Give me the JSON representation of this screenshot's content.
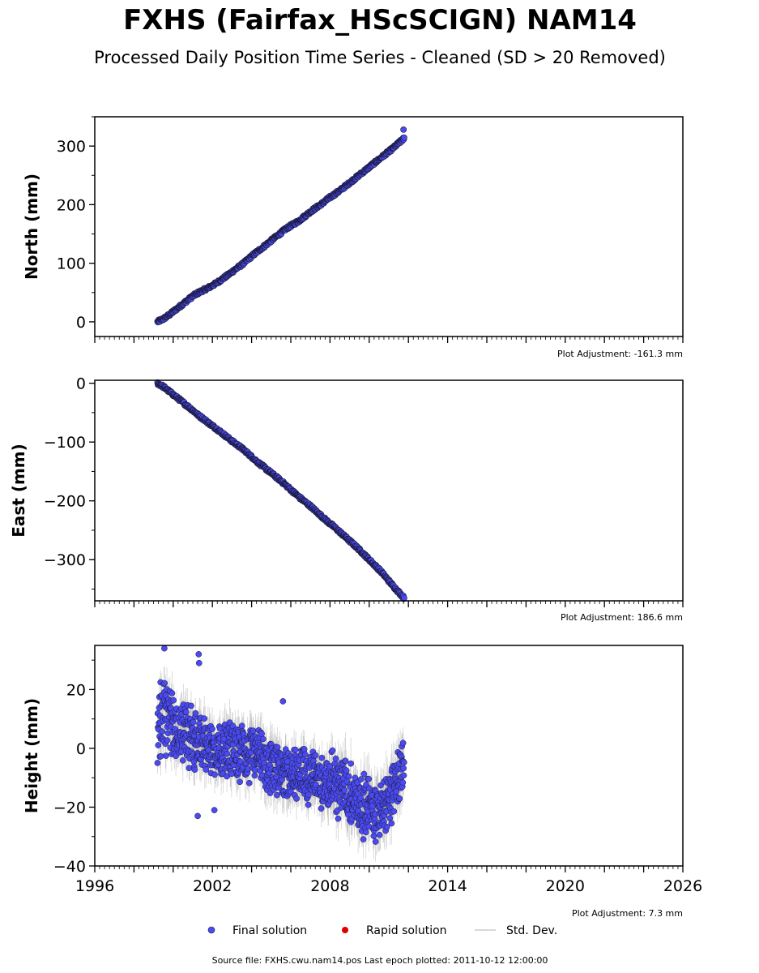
{
  "title": "FXHS (Fairfax_HScSCIGN) NAM14",
  "subtitle": "Processed Daily Position Time Series - Cleaned (SD > 20 Removed)",
  "legend": {
    "final": "Final solution",
    "rapid": "Rapid solution",
    "std": "Std. Dev."
  },
  "source": "Source file: FXHS.cwu.nam14.pos  Last epoch plotted: 2011-10-12 12:00:00",
  "colors": {
    "final": "#4a4af0",
    "final_edge": "#1a1a3a",
    "rapid": "#dd0000",
    "std": "#b0b0b0"
  },
  "chart_data": [
    {
      "type": "scatter",
      "panel": "north",
      "ylabel": "North (mm)",
      "adjustment": "Plot Adjustment: -161.3 mm",
      "xlim": [
        1996,
        2026
      ],
      "ylim": [
        -25,
        350
      ],
      "yticks": [
        0,
        100,
        200,
        300
      ],
      "ytick_labels": [
        "0",
        "100",
        "200",
        "300"
      ],
      "series": [
        {
          "name": "Final solution",
          "x": [
            1999.2,
            1999.5,
            1999.8,
            2000.1,
            2000.4,
            2000.7,
            2001.0,
            2001.3,
            2001.6,
            2001.9,
            2002.2,
            2002.5,
            2002.8,
            2003.1,
            2003.4,
            2003.7,
            2004.0,
            2004.3,
            2004.6,
            2004.9,
            2005.2,
            2005.5,
            2005.8,
            2006.1,
            2006.4,
            2006.7,
            2007.0,
            2007.3,
            2007.6,
            2007.9,
            2008.2,
            2008.5,
            2008.8,
            2009.1,
            2009.4,
            2009.7,
            2010.0,
            2010.3,
            2010.6,
            2010.9,
            2011.2,
            2011.5,
            2011.78
          ],
          "y": [
            0,
            5,
            12,
            20,
            28,
            36,
            44,
            50,
            55,
            60,
            66,
            73,
            80,
            88,
            95,
            103,
            112,
            120,
            128,
            136,
            144,
            152,
            160,
            166,
            172,
            180,
            188,
            195,
            202,
            210,
            217,
            224,
            232,
            240,
            248,
            256,
            264,
            272,
            280,
            288,
            296,
            305,
            313
          ]
        }
      ],
      "outliers": {
        "x": [
          2011.75
        ],
        "y": [
          328
        ]
      }
    },
    {
      "type": "scatter",
      "panel": "east",
      "ylabel": "East (mm)",
      "adjustment": "Plot Adjustment: 186.6 mm",
      "xlim": [
        1996,
        2026
      ],
      "ylim": [
        -370,
        5
      ],
      "yticks": [
        0,
        -100,
        -200,
        -300
      ],
      "ytick_labels": [
        "0",
        "−100",
        "−200",
        "−300"
      ],
      "series": [
        {
          "name": "Final solution",
          "x": [
            1999.2,
            1999.5,
            1999.8,
            2000.1,
            2000.4,
            2000.7,
            2001.0,
            2001.3,
            2001.6,
            2001.9,
            2002.2,
            2002.5,
            2002.8,
            2003.1,
            2003.4,
            2003.7,
            2004.0,
            2004.3,
            2004.6,
            2004.9,
            2005.2,
            2005.5,
            2005.8,
            2006.1,
            2006.4,
            2006.7,
            2007.0,
            2007.3,
            2007.6,
            2007.9,
            2008.2,
            2008.5,
            2008.8,
            2009.1,
            2009.4,
            2009.7,
            2010.0,
            2010.3,
            2010.6,
            2010.9,
            2011.2,
            2011.5,
            2011.78
          ],
          "y": [
            0,
            -6,
            -14,
            -22,
            -30,
            -38,
            -46,
            -55,
            -62,
            -70,
            -77,
            -85,
            -93,
            -101,
            -108,
            -116,
            -125,
            -134,
            -142,
            -150,
            -158,
            -166,
            -175,
            -184,
            -193,
            -201,
            -209,
            -218,
            -227,
            -236,
            -244,
            -253,
            -262,
            -271,
            -280,
            -290,
            -300,
            -310,
            -320,
            -332,
            -344,
            -355,
            -365
          ]
        }
      ]
    },
    {
      "type": "scatter",
      "panel": "height",
      "ylabel": "Height (mm)",
      "adjustment": "Plot Adjustment: 7.3 mm",
      "xlim": [
        1996,
        2026
      ],
      "ylim": [
        -40,
        35
      ],
      "yticks": [
        20,
        0,
        -20,
        -40
      ],
      "ytick_labels": [
        "20",
        "0",
        "−20",
        "−40"
      ],
      "xticks": [
        1996,
        2002,
        2008,
        2014,
        2020,
        2026
      ],
      "xtick_labels": [
        "1996",
        "2002",
        "2008",
        "2014",
        "2020",
        "2026"
      ],
      "series": [
        {
          "name": "Final solution",
          "x": [
            1999.2,
            1999.5,
            1999.8,
            2000.1,
            2000.4,
            2000.7,
            2001.0,
            2001.3,
            2001.6,
            2001.9,
            2002.2,
            2002.5,
            2002.8,
            2003.1,
            2003.4,
            2003.7,
            2004.0,
            2004.3,
            2004.6,
            2004.9,
            2005.2,
            2005.5,
            2005.8,
            2006.1,
            2006.4,
            2006.7,
            2007.0,
            2007.3,
            2007.6,
            2007.9,
            2008.2,
            2008.5,
            2008.8,
            2009.1,
            2009.4,
            2009.7,
            2010.0,
            2010.3,
            2010.6,
            2010.9,
            2011.2,
            2011.5,
            2011.78
          ],
          "y": [
            8,
            12,
            9,
            6,
            7,
            5,
            4,
            1,
            2,
            0,
            -1,
            -2,
            0,
            1,
            -2,
            -3,
            -1,
            -3,
            -5,
            -7,
            -8,
            -6,
            -9,
            -10,
            -7,
            -8,
            -11,
            -9,
            -12,
            -13,
            -11,
            -14,
            -12,
            -16,
            -18,
            -20,
            -19,
            -22,
            -18,
            -20,
            -14,
            -10,
            -2
          ],
          "std": [
            5,
            6,
            6,
            6,
            6,
            6,
            6,
            6,
            6,
            6,
            6,
            6,
            6,
            6,
            6,
            6,
            6,
            6,
            6,
            6,
            6,
            6,
            6,
            6,
            6,
            6,
            6,
            6,
            6,
            6,
            7,
            7,
            7,
            7,
            7,
            7,
            7,
            7,
            7,
            7,
            7,
            7,
            7
          ],
          "spread": [
            12,
            14,
            12,
            11,
            10,
            10,
            10,
            9,
            9,
            9,
            9,
            9,
            9,
            9,
            9,
            9,
            9,
            9,
            9,
            9,
            9,
            9,
            9,
            9,
            9,
            9,
            9,
            9,
            9,
            9,
            10,
            10,
            10,
            10,
            10,
            10,
            10,
            10,
            10,
            10,
            10,
            10,
            10
          ]
        }
      ],
      "outliers": {
        "x": [
          1999.55,
          2001.3,
          2001.32,
          2002.1,
          2005.6,
          2001.25
        ],
        "y": [
          34,
          32,
          29,
          -21,
          16,
          -23
        ]
      }
    }
  ]
}
